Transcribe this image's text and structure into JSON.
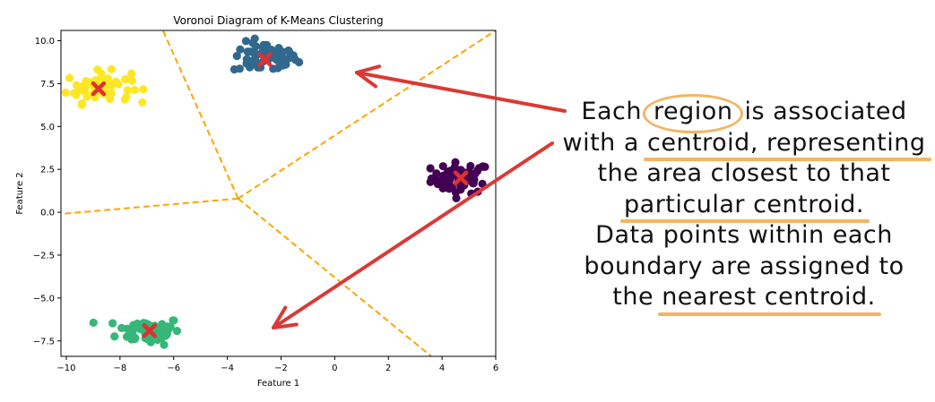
{
  "chart_data": {
    "type": "scatter",
    "title": "Voronoi Diagram of K-Means Clustering",
    "xlabel": "Feature 1",
    "ylabel": "Feature 2",
    "xlim": [
      -10.2,
      6.0
    ],
    "ylim": [
      -8.4,
      10.6
    ],
    "xticks": [
      -10,
      -8,
      -6,
      -4,
      -2,
      0,
      2,
      4,
      6
    ],
    "yticks": [
      -7.5,
      -5.0,
      -2.5,
      0.0,
      2.5,
      5.0,
      7.5,
      10.0
    ],
    "xtick_labels": [
      "−10",
      "−8",
      "−6",
      "−4",
      "−2",
      "0",
      "2",
      "4",
      "6"
    ],
    "ytick_labels": [
      "−7.5",
      "−5.0",
      "−2.5",
      "0.0",
      "2.5",
      "5.0",
      "7.5",
      "10.0"
    ],
    "grid": false,
    "clusters": [
      {
        "color": "#440154",
        "center": [
          4.7,
          2.0
        ],
        "spread": [
          0.55,
          0.45
        ],
        "count": 60
      },
      {
        "color": "#31688e",
        "center": [
          -2.6,
          9.0
        ],
        "spread": [
          0.6,
          0.45
        ],
        "count": 60
      },
      {
        "color": "#35b779",
        "center": [
          -6.9,
          -6.9
        ],
        "spread": [
          0.6,
          0.4
        ],
        "count": 60
      },
      {
        "color": "#fde725",
        "center": [
          -8.8,
          7.3
        ],
        "spread": [
          0.6,
          0.45
        ],
        "count": 60
      }
    ],
    "centroids": [
      [
        4.7,
        2.0
      ],
      [
        -2.6,
        8.9
      ],
      [
        -6.9,
        -6.9
      ],
      [
        -8.8,
        7.2
      ]
    ],
    "centroid_color": "#e0302f",
    "voronoi_color": "#ffa500",
    "voronoi_vertex": [
      -3.6,
      0.8
    ],
    "voronoi_edges": [
      [
        [
          -3.6,
          0.8
        ],
        [
          -6.4,
          10.6
        ]
      ],
      [
        [
          -3.6,
          0.8
        ],
        [
          6.0,
          10.6
        ]
      ],
      [
        [
          -3.6,
          0.8
        ],
        [
          -10.2,
          -0.1
        ]
      ],
      [
        [
          -3.6,
          0.8
        ],
        [
          3.6,
          -8.4
        ]
      ]
    ]
  },
  "annotation": {
    "lines": [
      [
        {
          "t": "Each "
        },
        {
          "t": "region",
          "style": "circled"
        },
        {
          "t": " is associated"
        }
      ],
      [
        {
          "t": "with a "
        },
        {
          "t": "centroid, representing",
          "style": "hl"
        }
      ],
      [
        {
          "t": "the area closest to that"
        }
      ],
      [
        {
          "t": "particular centroid.",
          "style": "hl"
        }
      ],
      [
        {
          "t": "Data points within each"
        }
      ],
      [
        {
          "t": "boundary are assigned to"
        }
      ],
      [
        {
          "t": "the "
        },
        {
          "t": "nearest centroid.",
          "style": "hl"
        }
      ]
    ],
    "arrow_color": "#d93a35"
  }
}
